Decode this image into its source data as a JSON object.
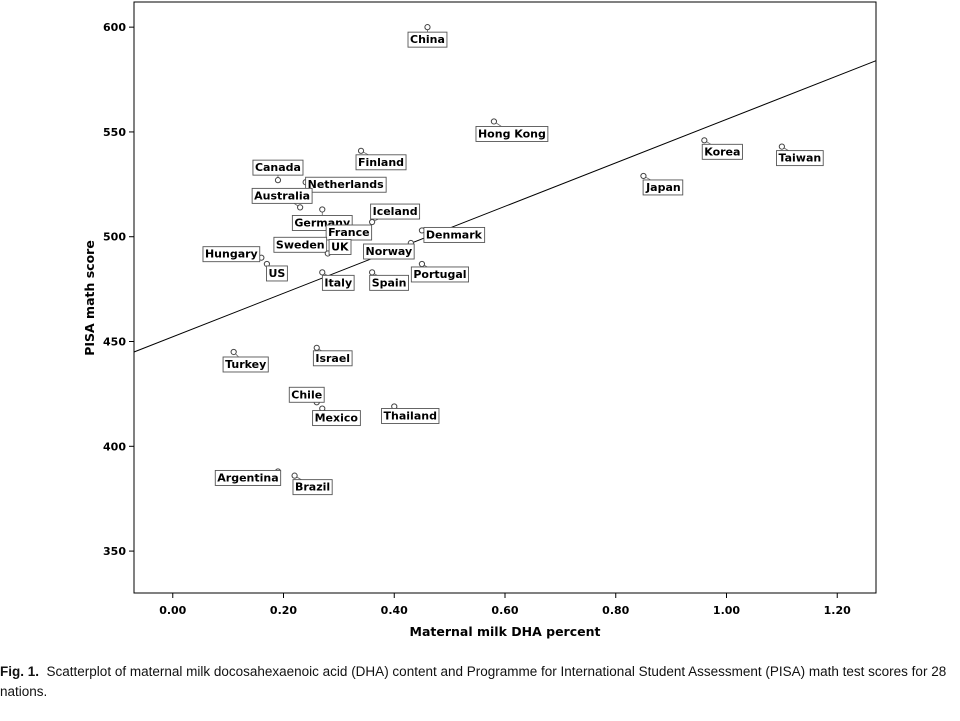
{
  "chart_data": {
    "type": "scatter",
    "xlabel": "Maternal milk DHA percent",
    "ylabel": "PISA math score",
    "xlim": [
      -0.07,
      1.27
    ],
    "ylim": [
      330,
      612
    ],
    "xticks": [
      0.0,
      0.2,
      0.4,
      0.6,
      0.8,
      1.0,
      1.2
    ],
    "xtick_labels": [
      "0.00",
      "0.20",
      "0.40",
      "0.60",
      "0.80",
      "1.00",
      "1.20"
    ],
    "yticks": [
      350,
      400,
      450,
      500,
      550,
      600
    ],
    "ytick_labels": [
      "350",
      "400",
      "450",
      "500",
      "550",
      "600"
    ],
    "fit_line": {
      "x": [
        -0.07,
        1.27
      ],
      "y": [
        445,
        584
      ]
    },
    "points": [
      {
        "name": "China",
        "x": 0.46,
        "y": 600
      },
      {
        "name": "Hong Kong",
        "x": 0.58,
        "y": 555
      },
      {
        "name": "Korea",
        "x": 0.96,
        "y": 546
      },
      {
        "name": "Taiwan",
        "x": 1.1,
        "y": 543
      },
      {
        "name": "Finland",
        "x": 0.34,
        "y": 541
      },
      {
        "name": "Japan",
        "x": 0.85,
        "y": 529
      },
      {
        "name": "Canada",
        "x": 0.19,
        "y": 527
      },
      {
        "name": "Netherlands",
        "x": 0.24,
        "y": 526
      },
      {
        "name": "Australia",
        "x": 0.23,
        "y": 514
      },
      {
        "name": "Germany",
        "x": 0.27,
        "y": 513
      },
      {
        "name": "Iceland",
        "x": 0.36,
        "y": 507
      },
      {
        "name": "France",
        "x": 0.3,
        "y": 497
      },
      {
        "name": "Denmark",
        "x": 0.45,
        "y": 503
      },
      {
        "name": "Norway",
        "x": 0.43,
        "y": 497
      },
      {
        "name": "Sweden",
        "x": 0.27,
        "y": 494
      },
      {
        "name": "UK",
        "x": 0.28,
        "y": 492
      },
      {
        "name": "Hungary",
        "x": 0.16,
        "y": 490
      },
      {
        "name": "US",
        "x": 0.17,
        "y": 487
      },
      {
        "name": "Portugal",
        "x": 0.45,
        "y": 487
      },
      {
        "name": "Italy",
        "x": 0.27,
        "y": 483
      },
      {
        "name": "Spain",
        "x": 0.36,
        "y": 483
      },
      {
        "name": "Israel",
        "x": 0.26,
        "y": 447
      },
      {
        "name": "Turkey",
        "x": 0.11,
        "y": 445
      },
      {
        "name": "Chile",
        "x": 0.26,
        "y": 421
      },
      {
        "name": "Mexico",
        "x": 0.27,
        "y": 418
      },
      {
        "name": "Thailand",
        "x": 0.4,
        "y": 419
      },
      {
        "name": "Argentina",
        "x": 0.19,
        "y": 388
      },
      {
        "name": "Brazil",
        "x": 0.22,
        "y": 386
      }
    ]
  },
  "caption": {
    "fig_label": "Fig. 1.",
    "text": "Scatterplot of maternal milk docosahexaenoic acid (DHA) content and Programme for International Student Assessment (PISA) math test scores for 28 nations."
  }
}
